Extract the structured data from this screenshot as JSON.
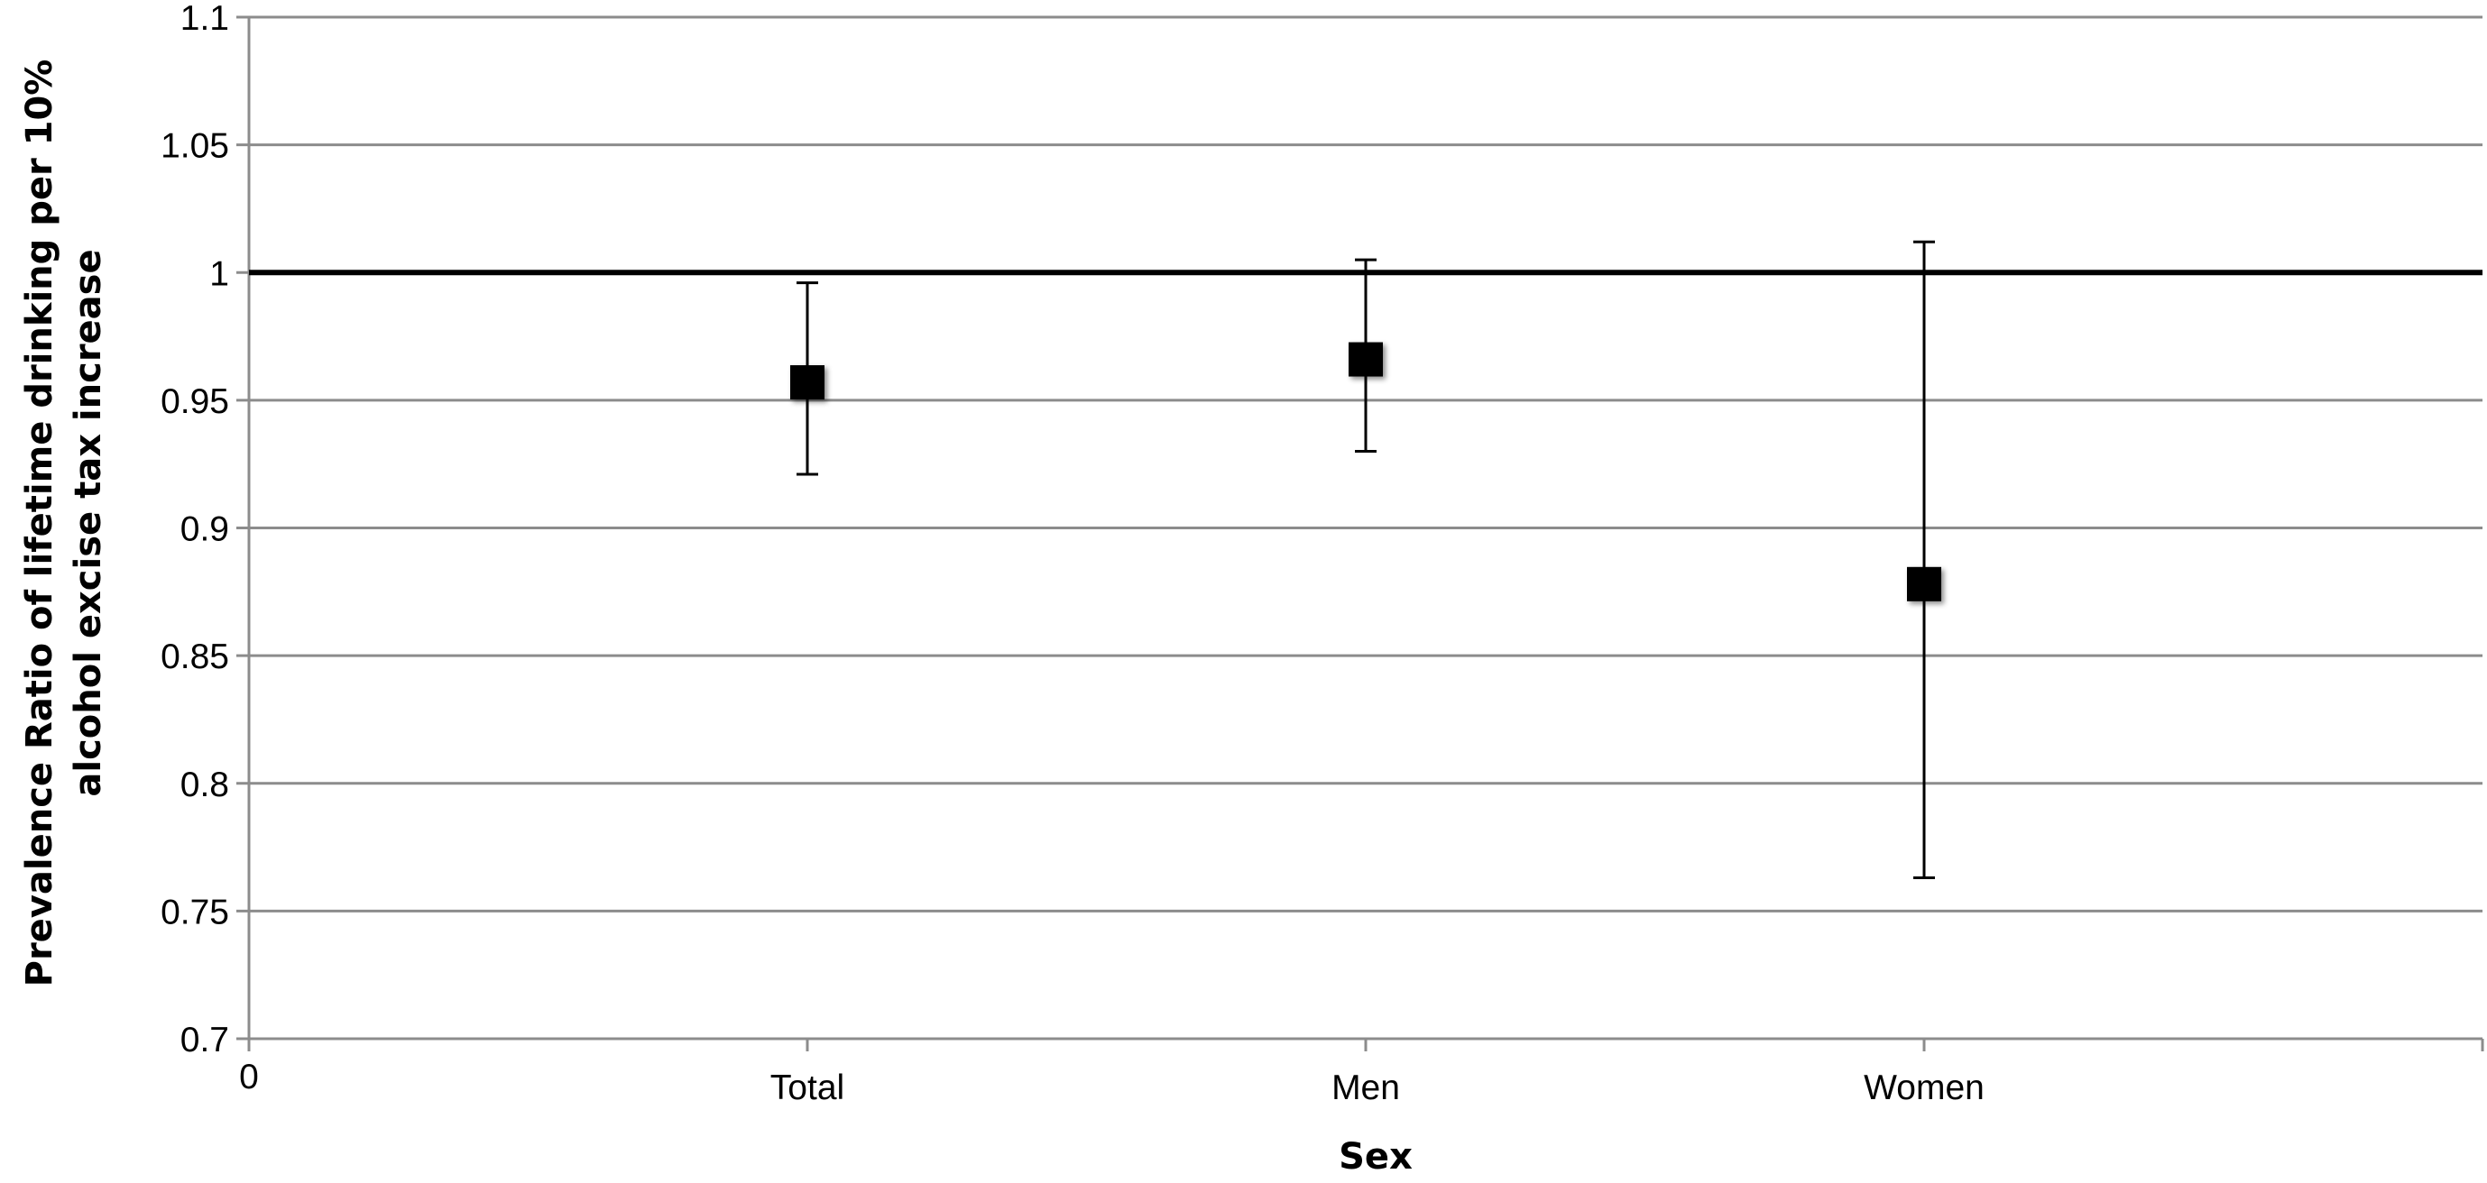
{
  "chart_data": {
    "type": "scatter",
    "categories": [
      "Total",
      "Men",
      "Women"
    ],
    "series": [
      {
        "values": [
          0.957,
          0.966,
          0.878
        ],
        "ci_lower": [
          0.921,
          0.93,
          0.763
        ],
        "ci_upper": [
          0.996,
          1.005,
          1.012
        ]
      }
    ],
    "xlabel": "Sex",
    "ylabel": "Prevalence Ratio of lifetime drinking per 10% alcohol excise tax increase",
    "ylabel_lines": [
      "Prevalence Ratio of lifetime drinking per 10%",
      "alcohol excise tax increase"
    ],
    "x_origin_label": "0",
    "ylim": [
      0.7,
      1.1
    ],
    "yticks": [
      0.7,
      0.75,
      0.8,
      0.85,
      0.9,
      0.95,
      1,
      1.05,
      1.1
    ],
    "ytick_labels": [
      "0.7",
      "0.75",
      "0.8",
      "0.85",
      "0.9",
      "0.95",
      "1",
      "1.05",
      "1.1"
    ],
    "reference_line": 1,
    "grid": true,
    "legend": "none",
    "colors": {
      "marker": "#000000",
      "grid": "#8c8c8c",
      "reference": "#000000"
    }
  }
}
